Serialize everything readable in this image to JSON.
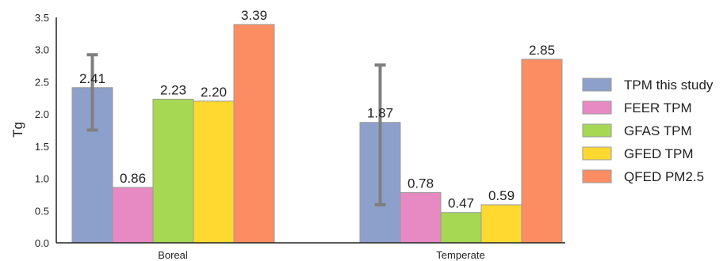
{
  "chart_data": {
    "type": "bar",
    "ylabel": "Tg",
    "xlabel": "",
    "ylim": [
      0,
      3.5
    ],
    "yticks": [
      "0.0",
      "0.5",
      "1.0",
      "1.5",
      "2.0",
      "2.5",
      "3.0",
      "3.5"
    ],
    "categories": [
      "Boreal",
      "Temperate"
    ],
    "series": [
      {
        "name": "TPM this study",
        "color": "#8da0cb",
        "values": [
          2.41,
          1.87
        ],
        "labels": [
          "2.41",
          "1.87"
        ],
        "error": [
          [
            1.75,
            2.92
          ],
          [
            0.59,
            2.76
          ]
        ]
      },
      {
        "name": "FEER TPM",
        "color": "#e78ac3",
        "values": [
          0.86,
          0.78
        ],
        "labels": [
          "0.86",
          "0.78"
        ]
      },
      {
        "name": "GFAS TPM",
        "color": "#a6d854",
        "values": [
          2.23,
          0.47
        ],
        "labels": [
          "2.23",
          "0.47"
        ]
      },
      {
        "name": "GFED TPM",
        "color": "#ffd92f",
        "values": [
          2.2,
          0.59
        ],
        "labels": [
          "2.20",
          "0.59"
        ]
      },
      {
        "name": "QFED PM2.5",
        "color": "#fc8d62",
        "values": [
          3.39,
          2.85
        ],
        "labels": [
          "3.39",
          "2.85"
        ]
      }
    ],
    "legend_position": "right",
    "grid": false
  }
}
